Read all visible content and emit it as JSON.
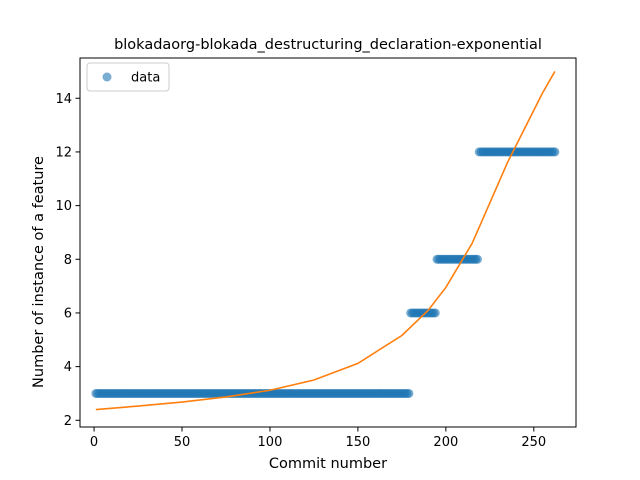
{
  "chart_data": {
    "type": "scatter",
    "title": "blokadaorg-blokada_destructuring_declaration-exponential",
    "xlabel": "Commit number",
    "ylabel": "Number of instance of a feature",
    "xlim": [
      -8,
      274
    ],
    "ylim": [
      1.75,
      15.5
    ],
    "xticks": [
      0,
      50,
      100,
      150,
      200,
      250
    ],
    "yticks": [
      2,
      4,
      6,
      8,
      10,
      12,
      14
    ],
    "grid": false,
    "legend": {
      "placement": "top-left",
      "entries": [
        "data"
      ]
    },
    "colors": {
      "data": "#1f77b4",
      "fit": "#ff7f0e"
    },
    "series": [
      {
        "name": "data",
        "kind": "scatter",
        "segments": [
          {
            "x_start": 1,
            "x_end": 179,
            "y": 3
          },
          {
            "x_start": 180,
            "x_end": 194,
            "y": 6
          },
          {
            "x_start": 195,
            "x_end": 218,
            "y": 8
          },
          {
            "x_start": 219,
            "x_end": 262,
            "y": 12
          }
        ]
      },
      {
        "kind": "line",
        "x": [
          1,
          25,
          50,
          75,
          100,
          125,
          150,
          175,
          190,
          200,
          215,
          225,
          235,
          245,
          255,
          262
        ],
        "y": [
          2.4,
          2.53,
          2.68,
          2.87,
          3.12,
          3.5,
          4.12,
          5.16,
          6.1,
          6.95,
          8.6,
          10.1,
          11.6,
          12.9,
          14.2,
          15.0
        ]
      }
    ]
  }
}
